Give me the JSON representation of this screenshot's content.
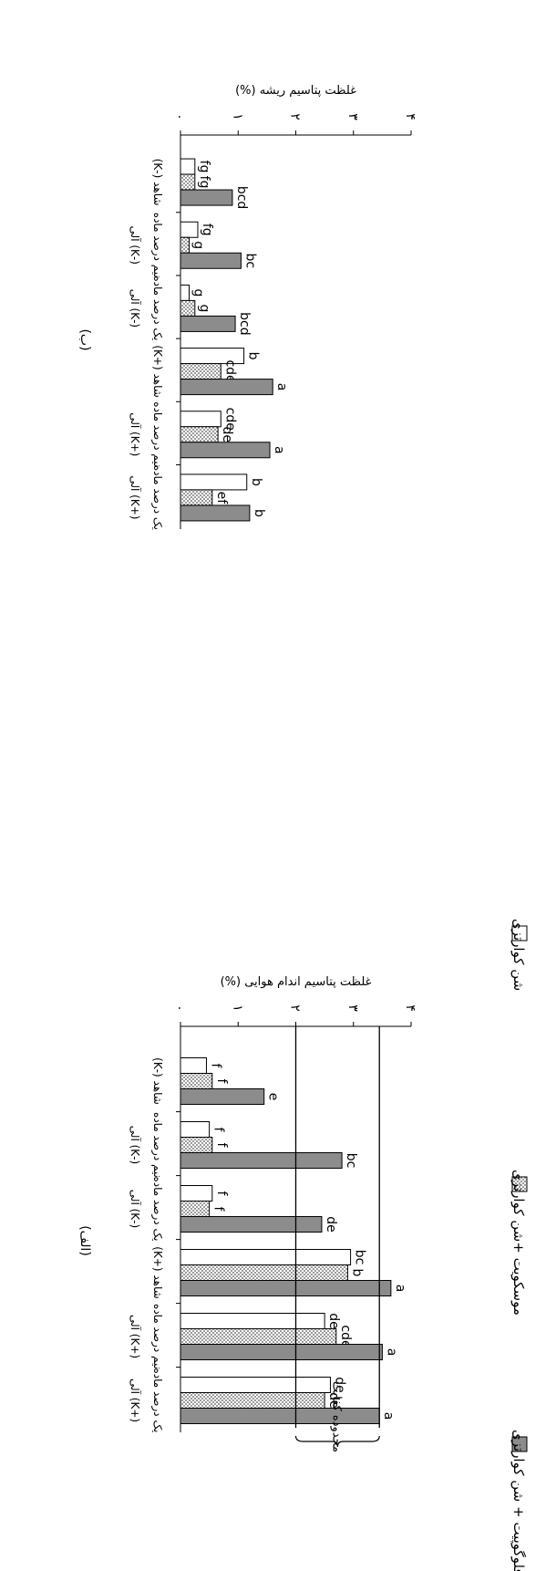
{
  "figure": {
    "legend": [
      {
        "key": "sand",
        "label": "شن کوارتزی",
        "fill": "#ffffff"
      },
      {
        "key": "musc",
        "label": "موسکویت +شن کوارتزی",
        "fill": "dots"
      },
      {
        "key": "phlog",
        "label": "فلوگوپیت + شن کوارتزی",
        "fill": "#8c8c8c"
      }
    ],
    "sufficiency_label": "محدوده کفایت",
    "x_groups": [
      {
        "line1": "شاهد (-K)",
        "line2": ""
      },
      {
        "line1": "نیم درصد ماده",
        "line2": "(-K) آلی"
      },
      {
        "line1": "یک درصد ماده",
        "line2": "(-K) آلی"
      },
      {
        "line1": "شاهد (+K)",
        "line2": ""
      },
      {
        "line1": "نیم درصد ماده",
        "line2": "(+K) آلی"
      },
      {
        "line1": "یک درصد ماده",
        "line2": "(+K) آلی"
      }
    ]
  },
  "chart_data": [
    {
      "panel": "(الف)",
      "type": "bar",
      "ylabel": "غلظت پتاسیم اندام هوایی (%)",
      "ylim": [
        0,
        4
      ],
      "y_ticks": [
        "۰",
        "۱",
        "۲",
        "۳",
        "۴"
      ],
      "categories": [
        "شاهد (-K)",
        "نیم درصد ماده آلی (-K)",
        "یک درصد ماده آلی (-K)",
        "شاهد (+K)",
        "نیم درصد ماده آلی (+K)",
        "یک درصد ماده آلی (+K)"
      ],
      "series": [
        {
          "name": "شن کوارتزی",
          "values": [
            0.45,
            0.5,
            0.55,
            2.95,
            2.5,
            2.6
          ],
          "labels": [
            "f",
            "f",
            "f",
            "bc",
            "de",
            "de"
          ]
        },
        {
          "name": "موسکویت +شن کوارتزی",
          "values": [
            0.55,
            0.55,
            0.5,
            2.9,
            2.7,
            2.5
          ],
          "labels": [
            "f",
            "f",
            "f",
            "b",
            "cde",
            "de"
          ]
        },
        {
          "name": "فلوگوپیت + شن کوارتزی",
          "values": [
            1.45,
            2.8,
            2.45,
            3.65,
            3.5,
            3.45
          ],
          "labels": [
            "e",
            "bc",
            "de",
            "a",
            "a",
            "a"
          ]
        }
      ],
      "reference_lines": [
        3.45,
        2.0
      ]
    },
    {
      "panel": "(ب)",
      "type": "bar",
      "ylabel": "غلظت پتاسیم ریشه (%)",
      "ylim": [
        0,
        4
      ],
      "y_ticks": [
        "۰",
        "۱",
        "۲",
        "۳",
        "۴"
      ],
      "categories": [
        "شاهد (-K)",
        "نیم درصد ماده آلی (-K)",
        "یک درصد ماده آلی (-K)",
        "شاهد (+K)",
        "نیم درصد ماده آلی (+K)",
        "یک درصد ماده آلی (+K)"
      ],
      "series": [
        {
          "name": "شن کوارتزی",
          "values": [
            0.25,
            0.3,
            0.15,
            1.1,
            0.7,
            1.15
          ],
          "labels": [
            "fg",
            "fg",
            "g",
            "b",
            "cde",
            "b"
          ]
        },
        {
          "name": "موسکویت +شن کوارتزی",
          "values": [
            0.25,
            0.15,
            0.25,
            0.7,
            0.65,
            0.55
          ],
          "labels": [
            "fg",
            "g",
            "g",
            "cde",
            "de",
            "ef"
          ]
        },
        {
          "name": "فلوگوپیت + شن کوارتزی",
          "values": [
            0.9,
            1.05,
            0.95,
            1.6,
            1.55,
            1.2
          ],
          "labels": [
            "bcd",
            "bc",
            "bcd",
            "a",
            "a",
            "b"
          ]
        }
      ]
    }
  ]
}
